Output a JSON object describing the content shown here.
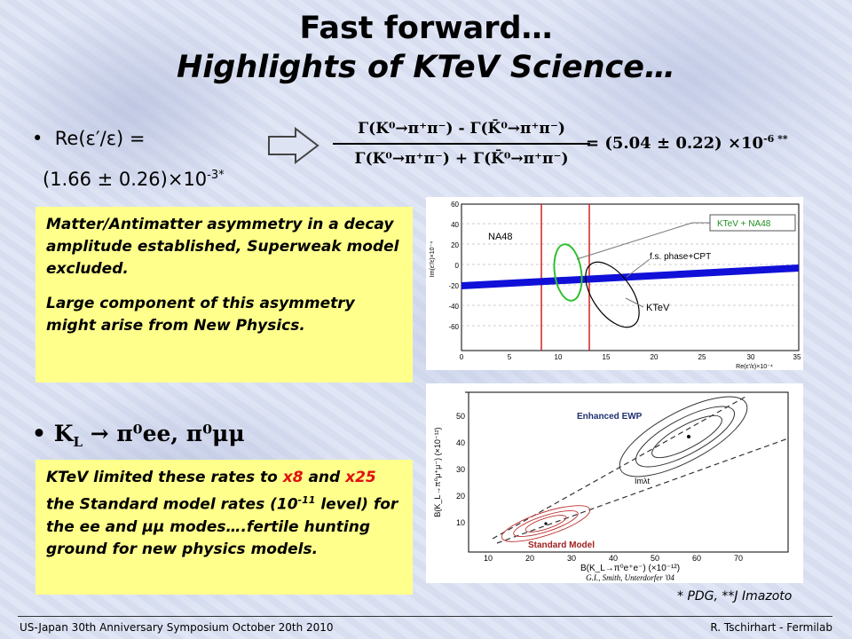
{
  "title_line1": "Fast forward…",
  "title_line2": "Highlights of KTeV Science…",
  "bullet1": {
    "label": "Re(ε′/ε) =",
    "value": "(1.66 ± 0.26)×10",
    "exp": "-3",
    "star": "*"
  },
  "formula": {
    "numerator": "Γ(K⁰→π⁺π⁻) - Γ(K̄⁰→π⁺π⁻)",
    "denominator": "Γ(K⁰→π⁺π⁻) + Γ(K̄⁰→π⁺π⁻)",
    "result": "=   (5.04 ± 0.22) ×10",
    "result_exp": "-6 **"
  },
  "box1": {
    "p1": "Matter/Antimatter asymmetry in a decay amplitude established, Superweak model excluded.",
    "p2": "Large component of this asymmetry might arise from New Physics."
  },
  "bullet2": {
    "label": "K",
    "sub": "L",
    "rest": " → π⁰ee, π⁰μμ"
  },
  "box2": {
    "t1": "KTeV limited these rates to ",
    "x8": "x8",
    "t2": " and ",
    "x25": "x25",
    "t3": " the Standard model rates (10",
    "exp": "-11",
    "t4": " level)  for the ee and μμ modes….fertile hunting ground for new physics models."
  },
  "plot1": {
    "ylabel": "Im(ε′/ε)×10⁻⁴",
    "xlabel": "Re(ε′/ε)×10⁻⁴",
    "legend": "KTeV + NA48",
    "label_na48": "NA48",
    "label_phase": "f.s. phase+CPT",
    "label_ktev": "KTeV",
    "yticks": [
      "60",
      "40",
      "20",
      "0",
      "-20",
      "-40",
      "-60"
    ],
    "xticks": [
      "0",
      "5",
      "10",
      "15",
      "20",
      "25",
      "30",
      "35"
    ]
  },
  "plot2": {
    "ylabel": "B(K_L→π⁰μ⁺μ⁻) (×10⁻¹²)",
    "xlabel": "B(K_L→π⁰e⁺e⁻) (×10⁻¹²)",
    "label_ewp": "Enhanced EWP",
    "label_sm": "Standard Model",
    "label_im": "Imλt",
    "credit": "G.I., Smith, Unterdorfer '04",
    "yticks": [
      "50",
      "40",
      "30",
      "20",
      "10"
    ],
    "xticks": [
      "10",
      "20",
      "30",
      "40",
      "50",
      "60",
      "70"
    ]
  },
  "refs": "* PDG, **J Imazoto",
  "footer_left": "US-Japan 30th Anniversary Symposium  October 20th 2010",
  "footer_right": "R. Tschirhart - Fermilab"
}
